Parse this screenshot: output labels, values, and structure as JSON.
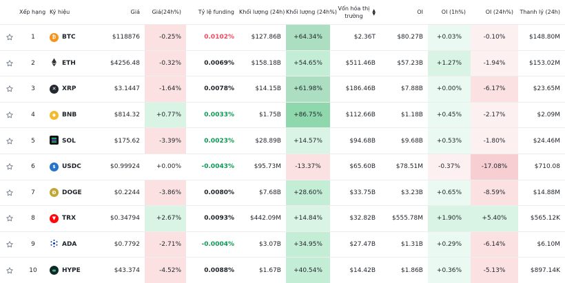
{
  "headers": {
    "rank": "Xếp hạng",
    "symbol": "Ký hiệu",
    "price": "Giá",
    "change": "Giá(24h%)",
    "funding": "Tỷ lệ funding",
    "volume": "Khối lượng (24h)",
    "volume_pct": "Khối lượng (24h%)",
    "mcap_line1": "Vốn hóa thị",
    "mcap_line2": "trường",
    "oi": "OI",
    "oi1h": "OI (1h%)",
    "oi24h": "OI (24h%)",
    "liq": "Thanh lý (24h)"
  },
  "colors": {
    "green": "#0ecb81",
    "red": "#f6465d",
    "green_shades": [
      "#eaf9f1",
      "#d9f3e5",
      "#c4edd6",
      "#acdfc1",
      "#8fd8ad"
    ],
    "red_shades": [
      "#fdf0f0",
      "#fbe1e2",
      "#f7cfd2"
    ]
  },
  "rows": [
    {
      "rank": "1",
      "symbol": "BTC",
      "icon": "bitcoin-icon",
      "price": "$118876",
      "change": "-0.25%",
      "funding": "0.0102%",
      "funding_color": "red",
      "volume": "$127.86B",
      "volume_pct": "+64.34%",
      "mcap": "$2.36T",
      "oi": "$80.27B",
      "oi1h": "+0.03%",
      "oi24h": "-0.10%",
      "liq": "$148.80M"
    },
    {
      "rank": "2",
      "symbol": "ETH",
      "icon": "ethereum-icon",
      "price": "$4256.48",
      "change": "-0.32%",
      "funding": "0.0069%",
      "funding_color": "black",
      "volume": "$158.18B",
      "volume_pct": "+54.65%",
      "mcap": "$511.46B",
      "oi": "$57.23B",
      "oi1h": "+1.27%",
      "oi24h": "-1.94%",
      "liq": "$153.02M"
    },
    {
      "rank": "3",
      "symbol": "XRP",
      "icon": "xrp-icon",
      "price": "$3.1447",
      "change": "-1.64%",
      "funding": "0.0078%",
      "funding_color": "black",
      "volume": "$14.15B",
      "volume_pct": "+61.98%",
      "mcap": "$186.46B",
      "oi": "$7.88B",
      "oi1h": "+0.00%",
      "oi24h": "-6.17%",
      "liq": "$23.65M"
    },
    {
      "rank": "4",
      "symbol": "BNB",
      "icon": "bnb-icon",
      "price": "$814.32",
      "change": "+0.77%",
      "funding": "0.0033%",
      "funding_color": "green",
      "volume": "$1.75B",
      "volume_pct": "+86.75%",
      "mcap": "$112.66B",
      "oi": "$1.18B",
      "oi1h": "+0.45%",
      "oi24h": "-2.17%",
      "liq": "$2.09M"
    },
    {
      "rank": "5",
      "symbol": "SOL",
      "icon": "solana-icon",
      "price": "$175.62",
      "change": "-3.39%",
      "funding": "0.0023%",
      "funding_color": "green",
      "volume": "$28.89B",
      "volume_pct": "+14.57%",
      "mcap": "$94.68B",
      "oi": "$9.68B",
      "oi1h": "+0.53%",
      "oi24h": "-1.80%",
      "liq": "$24.46M"
    },
    {
      "rank": "6",
      "symbol": "USDC",
      "icon": "usdc-icon",
      "price": "$0.99924",
      "change": "+0.00%",
      "funding": "-0.0043%",
      "funding_color": "green",
      "volume": "$95.73M",
      "volume_pct": "-13.37%",
      "mcap": "$65.60B",
      "oi": "$78.51M",
      "oi1h": "-0.37%",
      "oi24h": "-17.08%",
      "liq": "$710.08"
    },
    {
      "rank": "7",
      "symbol": "DOGE",
      "icon": "doge-icon",
      "price": "$0.2244",
      "change": "-3.86%",
      "funding": "0.0080%",
      "funding_color": "black",
      "volume": "$7.68B",
      "volume_pct": "+28.60%",
      "mcap": "$33.75B",
      "oi": "$3.23B",
      "oi1h": "+0.65%",
      "oi24h": "-8.59%",
      "liq": "$14.88M"
    },
    {
      "rank": "8",
      "symbol": "TRX",
      "icon": "tron-icon",
      "price": "$0.34794",
      "change": "+2.67%",
      "funding": "0.0093%",
      "funding_color": "black",
      "volume": "$442.09M",
      "volume_pct": "+14.84%",
      "mcap": "$32.82B",
      "oi": "$555.78M",
      "oi1h": "+1.90%",
      "oi24h": "+5.40%",
      "liq": "$565.12K"
    },
    {
      "rank": "9",
      "symbol": "ADA",
      "icon": "cardano-icon",
      "price": "$0.7792",
      "change": "-2.71%",
      "funding": "-0.0004%",
      "funding_color": "green",
      "volume": "$3.07B",
      "volume_pct": "+34.95%",
      "mcap": "$27.47B",
      "oi": "$1.31B",
      "oi1h": "+0.29%",
      "oi24h": "-6.14%",
      "liq": "$6.10M"
    },
    {
      "rank": "10",
      "symbol": "HYPE",
      "icon": "hyperliquid-icon",
      "price": "$43.374",
      "change": "-4.52%",
      "funding": "0.0088%",
      "funding_color": "black",
      "volume": "$1.67B",
      "volume_pct": "+40.54%",
      "mcap": "$14.42B",
      "oi": "$1.86B",
      "oi1h": "+0.36%",
      "oi24h": "-5.13%",
      "liq": "$897.14K"
    }
  ]
}
